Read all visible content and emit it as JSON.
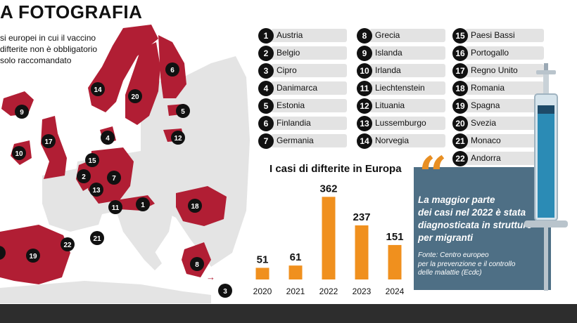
{
  "header": {
    "title": "A FOTOGRAFIA",
    "subtitle_lines": [
      "si europei in cui il vaccino",
      "difterite non è obbligatorio",
      "solo raccomandato"
    ]
  },
  "countries": [
    {
      "num": "1",
      "name": "Austria"
    },
    {
      "num": "2",
      "name": "Belgio"
    },
    {
      "num": "3",
      "name": "Cipro"
    },
    {
      "num": "4",
      "name": "Danimarca"
    },
    {
      "num": "5",
      "name": "Estonia"
    },
    {
      "num": "6",
      "name": "Finlandia"
    },
    {
      "num": "7",
      "name": "Germania"
    },
    {
      "num": "8",
      "name": "Grecia"
    },
    {
      "num": "9",
      "name": "Islanda"
    },
    {
      "num": "10",
      "name": "Irlanda"
    },
    {
      "num": "11",
      "name": "Liechtenstein"
    },
    {
      "num": "12",
      "name": "Lituania"
    },
    {
      "num": "13",
      "name": "Lussemburgo"
    },
    {
      "num": "14",
      "name": "Norvegia"
    },
    {
      "num": "15",
      "name": "Paesi Bassi"
    },
    {
      "num": "16",
      "name": "Portogallo"
    },
    {
      "num": "17",
      "name": "Regno Unito"
    },
    {
      "num": "18",
      "name": "Romania"
    },
    {
      "num": "19",
      "name": "Spagna"
    },
    {
      "num": "20",
      "name": "Svezia"
    },
    {
      "num": "21",
      "name": "Monaco"
    },
    {
      "num": "22",
      "name": "Andorra"
    }
  ],
  "chart_data": {
    "type": "bar",
    "title": "I casi di difterite in Europa",
    "categories": [
      "2020",
      "2021",
      "2022",
      "2023",
      "2024"
    ],
    "values": [
      51,
      61,
      362,
      237,
      151
    ],
    "ylim": [
      0,
      400
    ],
    "grid": false,
    "bar_color": "#f0901e"
  },
  "quote": {
    "mark": "“",
    "lines": [
      "La maggior parte",
      "dei casi nel 2022 è stata",
      "diagnosticata in strutture",
      "per migranti"
    ],
    "source_lines": [
      "Fonte: Centro europeo",
      "per la prevenzione e il controllo",
      "delle malattie (Ecdc)"
    ]
  },
  "map_markers": {
    "arrow": "→",
    "cyprus": "3"
  },
  "colors": {
    "accent": "#b11e34",
    "land": "#e4e4e4",
    "box": "#4e6f85",
    "bar": "#f0901e",
    "footer": "#2d2d2d"
  }
}
